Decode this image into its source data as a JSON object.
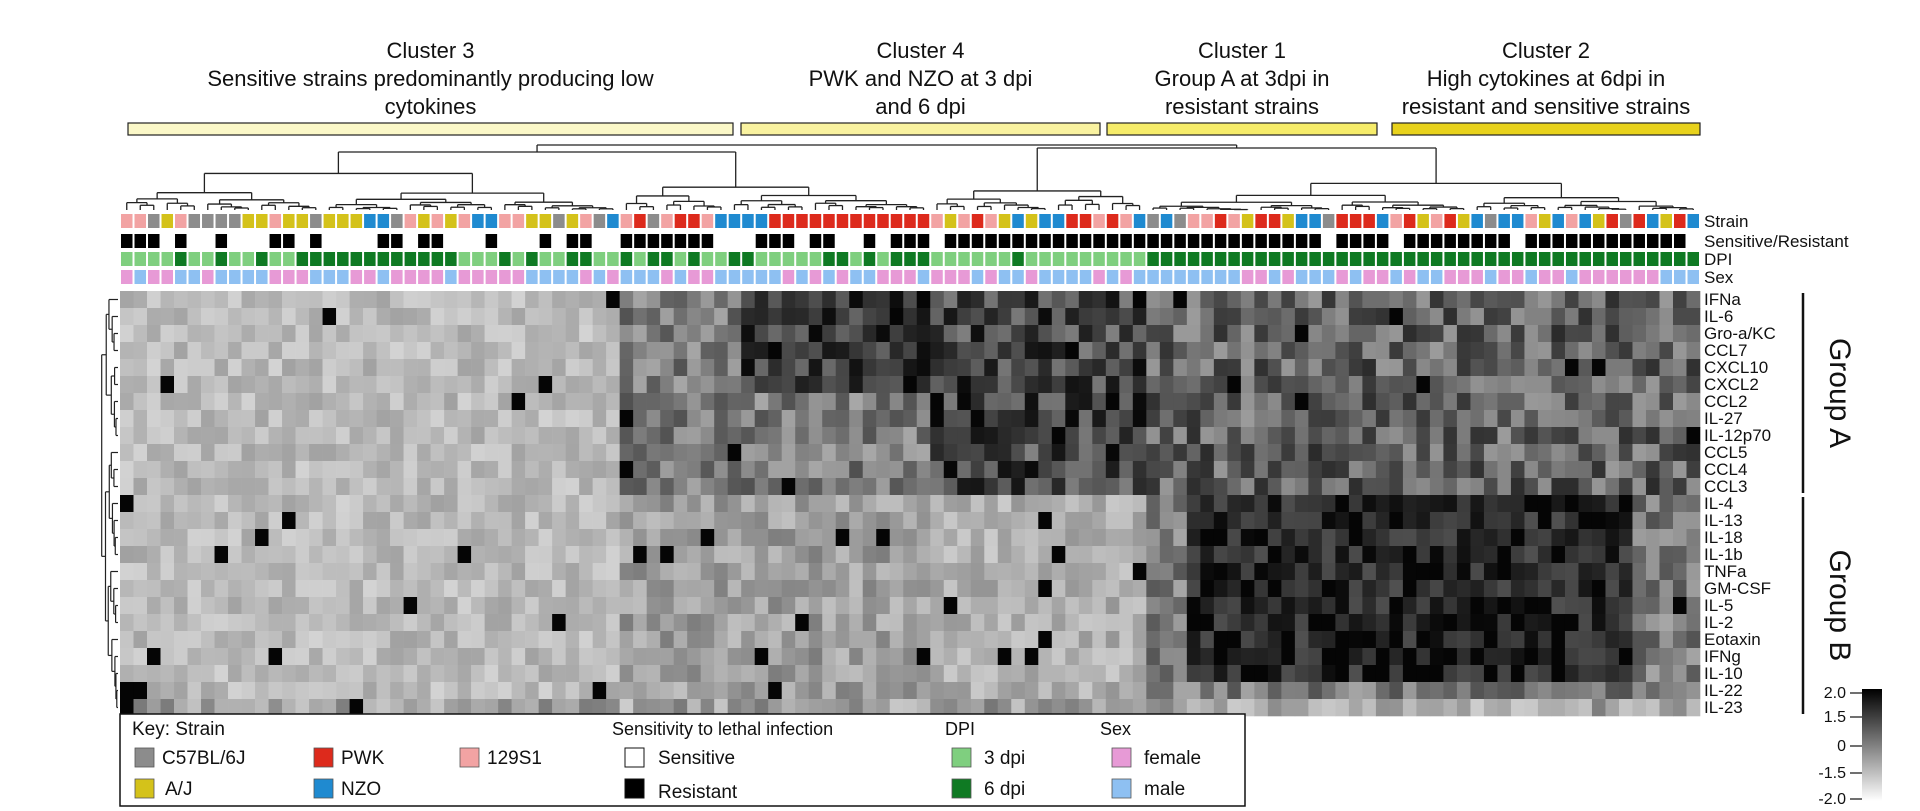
{
  "chart_data": {
    "type": "heatmap",
    "clusters": [
      {
        "name": "Cluster 3",
        "desc_lines": [
          "Sensitive strains predominantly producing low",
          "cytokines"
        ],
        "color": "#fbf8c8"
      },
      {
        "name": "Cluster 4",
        "desc_lines": [
          "PWK and NZO at 3 dpi",
          "and 6 dpi"
        ],
        "color": "#f9f2a0"
      },
      {
        "name": "Cluster 1",
        "desc_lines": [
          "Group A at 3dpi in",
          "resistant strains"
        ],
        "color": "#f6ec6a"
      },
      {
        "name": "Cluster 2",
        "desc_lines": [
          "High cytokines at 6dpi in",
          "resistant and sensitive strains"
        ],
        "color": "#e8d21c"
      }
    ],
    "annotation_rows": [
      "Strain",
      "Sensitive/Resistant",
      "DPI",
      "Sex"
    ],
    "rows": [
      "IFNa",
      "IL-6",
      "Gro-a/KC",
      "CCL7",
      "CXCL10",
      "CXCL2",
      "CCL2",
      "IL-27",
      "IL-12p70",
      "CCL5",
      "CCL4",
      "CCL3",
      "IL-4",
      "IL-13",
      "IL-18",
      "IL-1b",
      "TNFa",
      "GM-CSF",
      "IL-5",
      "IL-2",
      "Eotaxin",
      "IFNg",
      "IL-10",
      "IL-22",
      "IL-23"
    ],
    "groups": [
      {
        "name": "Group A",
        "from": "IFNa",
        "to": "CCL3"
      },
      {
        "name": "Group B",
        "from": "IL-4",
        "to": "IL-23"
      }
    ],
    "colorbar": {
      "ticks": [
        "2.0",
        "1.5",
        "0",
        "-1.5",
        "-2.0"
      ],
      "high_color": "#000000",
      "low_color": "#ffffff"
    },
    "key": {
      "strain_title": "Key: Strain",
      "strains": [
        {
          "label": "C57BL/6J",
          "color": "#8c8c8c"
        },
        {
          "label": "A/J",
          "color": "#d4c21a"
        },
        {
          "label": "PWK",
          "color": "#dd2a1c"
        },
        {
          "label": "NZO",
          "color": "#1f8ad0"
        },
        {
          "label": "129S1",
          "color": "#f2a3a3"
        }
      ],
      "sens_title": "Sensitivity to lethal infection",
      "sens": [
        {
          "label": "Sensitive",
          "color": "#ffffff"
        },
        {
          "label": "Resistant",
          "color": "#000000"
        }
      ],
      "dpi_title": "DPI",
      "dpi": [
        {
          "label": "3 dpi",
          "color": "#7fcf7f"
        },
        {
          "label": "6 dpi",
          "color": "#0f7a23"
        }
      ],
      "sex_title": "Sex",
      "sex": [
        {
          "label": "female",
          "color": "#e79ad6"
        },
        {
          "label": "male",
          "color": "#8ec0f2"
        }
      ]
    }
  }
}
